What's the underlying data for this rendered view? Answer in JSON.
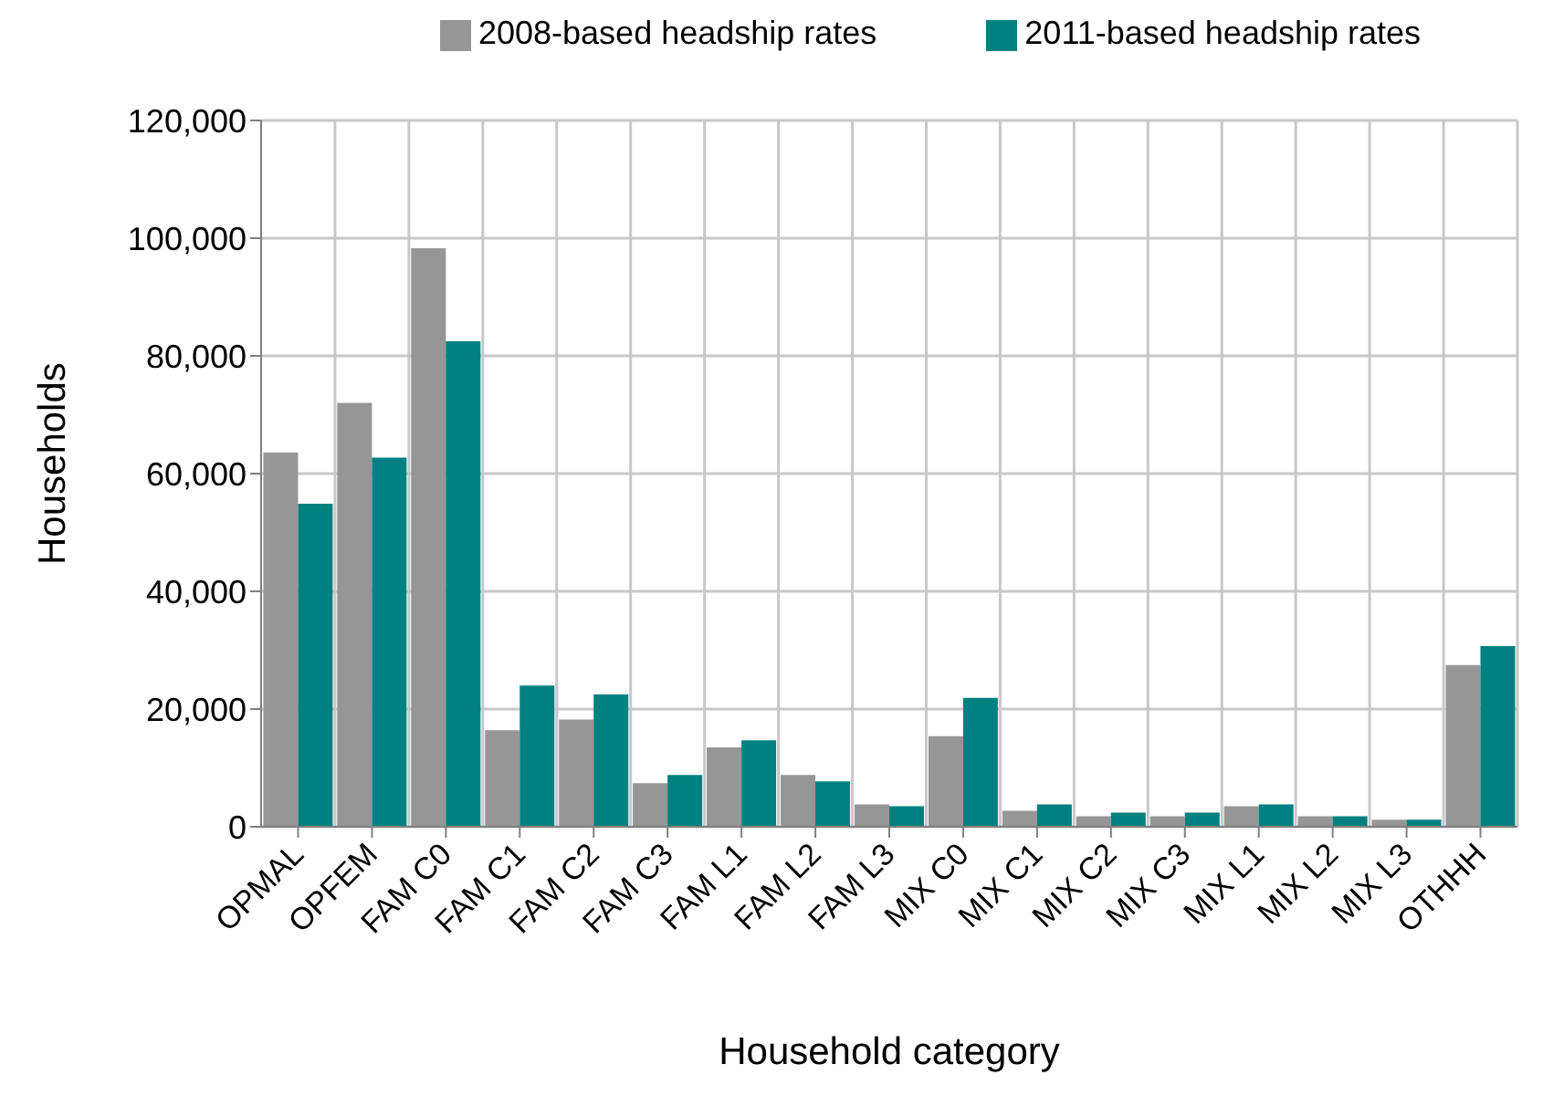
{
  "chart_data": {
    "type": "bar",
    "xlabel": "Household category",
    "ylabel": "Households",
    "categories": [
      "OPMAL",
      "OPFEM",
      "FAM C0",
      "FAM C1",
      "FAM C2",
      "FAM C3",
      "FAM L1",
      "FAM L2",
      "FAM L3",
      "MIX C0",
      "MIX C1",
      "MIX C2",
      "MIX C3",
      "MIX L1",
      "MIX L2",
      "MIX L3",
      "OTHHH"
    ],
    "series": [
      {
        "name": "2008-based headship rates",
        "color": "#969696",
        "values": [
          63600,
          72000,
          98300,
          16400,
          18200,
          7400,
          13500,
          8800,
          3800,
          15400,
          2700,
          1800,
          1800,
          3500,
          1800,
          1200,
          27500
        ]
      },
      {
        "name": "2011-based headship rates",
        "color": "#008080",
        "values": [
          54900,
          62700,
          82500,
          24000,
          22500,
          8800,
          14700,
          7700,
          3500,
          21900,
          3800,
          2400,
          2400,
          3800,
          1800,
          1200,
          30700
        ]
      }
    ],
    "ylim": [
      0,
      120000
    ],
    "yticks": [
      0,
      {
        "value": 20000,
        "label": "20,000"
      },
      {
        "value": 40000,
        "label": "40,000"
      },
      {
        "value": 60000,
        "label": "60,000"
      },
      {
        "value": 80000,
        "label": "80,000"
      },
      {
        "value": 100000,
        "label": "100,000"
      },
      {
        "value": 120000,
        "label": "120,000"
      }
    ],
    "grid": true,
    "legend": "top"
  }
}
